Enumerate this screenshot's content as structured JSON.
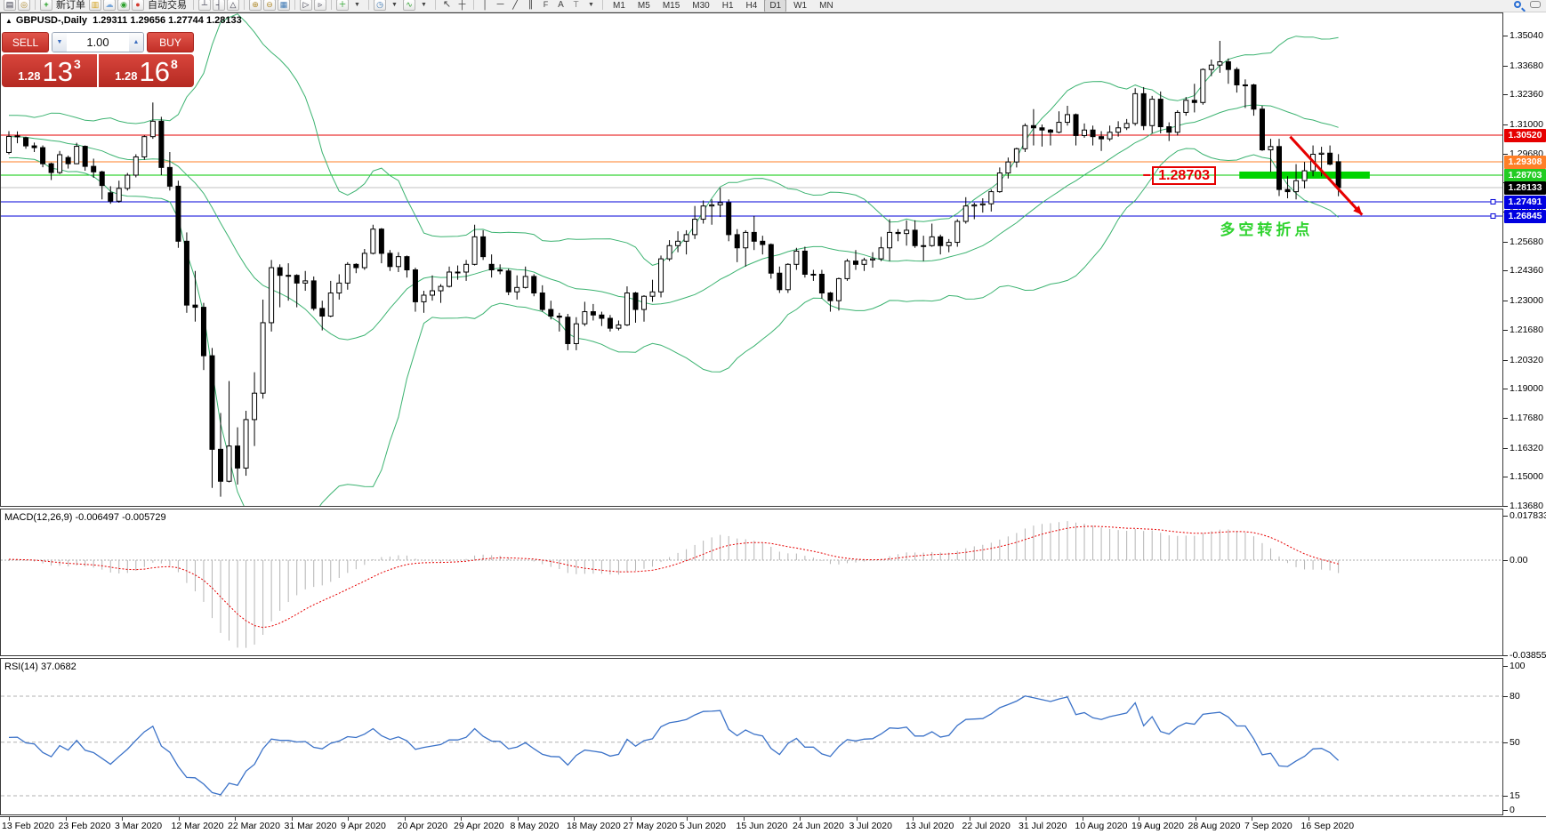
{
  "toolbar": {
    "new_order_label": "新订单",
    "autotrading_label": "自动交易",
    "timeframe_labels": [
      "M1",
      "M5",
      "M15",
      "M30",
      "H1",
      "H4",
      "D1",
      "W1",
      "MN"
    ],
    "active_timeframe": "D1",
    "icon_names_left": [
      "chart-window-icon",
      "zoom-window-icon",
      "new-order-icon",
      "data-window-icon",
      "terminal-icon",
      "signals-icon",
      "autotrading-icon"
    ],
    "icon_names_mid": [
      "auto-scroll-icon",
      "chart-shift-icon",
      "chart-profile-icon",
      "zoom-in-icon",
      "zoom-out-icon",
      "tile-windows-icon",
      "tester-icon",
      "step-icon",
      "add-chart-icon",
      "clock-icon",
      "indicators-icon",
      "cursor-icon",
      "crosshair-icon",
      "vertical-line-icon",
      "horizontal-line-icon",
      "trendline-icon",
      "channel-icon",
      "fibonacci-icon",
      "text-icon",
      "text-label-icon",
      "shapes-icon"
    ],
    "icon_names_right": [
      "search-icon",
      "chat-icon"
    ]
  },
  "trade_widget": {
    "sell_label": "SELL",
    "buy_label": "BUY",
    "volume": "1.00",
    "bid": {
      "small": "1.28",
      "big": "13",
      "sup": "3"
    },
    "ask": {
      "small": "1.28",
      "big": "16",
      "sup": "8"
    }
  },
  "chart": {
    "collapse_marker": "▲",
    "title": "GBPUSD-,Daily",
    "ohlc_text": "1.29311 1.29656 1.27744 1.28133"
  },
  "chart_data": {
    "type": "candlestick",
    "symbol": "GBPUSD-",
    "timeframe": "Daily",
    "last_bar": {
      "open": 1.29311,
      "high": 1.29656,
      "low": 1.27744,
      "close": 1.28133
    },
    "x_axis_labels": [
      "13 Feb 2020",
      "23 Feb 2020",
      "3 Mar 2020",
      "12 Mar 2020",
      "22 Mar 2020",
      "31 Mar 2020",
      "9 Apr 2020",
      "20 Apr 2020",
      "29 Apr 2020",
      "8 May 2020",
      "18 May 2020",
      "27 May 2020",
      "5 Jun 2020",
      "15 Jun 2020",
      "24 Jun 2020",
      "3 Jul 2020",
      "13 Jul 2020",
      "22 Jul 2020",
      "31 Jul 2020",
      "10 Aug 2020",
      "19 Aug 2020",
      "28 Aug 2020",
      "7 Sep 2020",
      "16 Sep 2020"
    ],
    "y_axis_ticks": [
      1.3504,
      1.3368,
      1.3236,
      1.31,
      1.2968,
      1.2836,
      1.2704,
      1.2568,
      1.2436,
      1.23,
      1.2168,
      1.2032,
      1.19,
      1.1768,
      1.1632,
      1.15,
      1.1368
    ],
    "warmup_closes": [
      1.3005,
      1.304,
      1.307,
      1.31,
      1.3005,
      1.2995,
      1.304,
      1.3115,
      1.3095,
      1.311,
      1.306,
      1.302,
      1.309,
      1.3105,
      1.302,
      1.299,
      1.301,
      1.306,
      1.293,
      1.3
    ],
    "candles": [
      [
        1.2973,
        1.307,
        1.2965,
        1.3046
      ],
      [
        1.3046,
        1.3069,
        1.3015,
        1.3048
      ],
      [
        1.304,
        1.3045,
        1.299,
        1.3003
      ],
      [
        1.3003,
        1.3018,
        1.2975,
        1.2995
      ],
      [
        1.2995,
        1.3005,
        1.2906,
        1.2922
      ],
      [
        1.2922,
        1.2927,
        1.2848,
        1.2882
      ],
      [
        1.2882,
        1.298,
        1.2875,
        1.2963
      ],
      [
        1.295,
        1.2959,
        1.29,
        1.2922
      ],
      [
        1.2922,
        1.3017,
        1.292,
        1.3001
      ],
      [
        1.3001,
        1.3005,
        1.289,
        1.291
      ],
      [
        1.291,
        1.2945,
        1.2858,
        1.2885
      ],
      [
        1.2885,
        1.289,
        1.276,
        1.2823
      ],
      [
        1.279,
        1.282,
        1.274,
        1.2752
      ],
      [
        1.2752,
        1.2845,
        1.2745,
        1.281
      ],
      [
        1.281,
        1.288,
        1.28,
        1.287
      ],
      [
        1.287,
        1.2965,
        1.286,
        1.2953
      ],
      [
        1.2953,
        1.305,
        1.294,
        1.3045
      ],
      [
        1.3045,
        1.32,
        1.3035,
        1.3115
      ],
      [
        1.3115,
        1.3135,
        1.287,
        1.2905
      ],
      [
        1.2905,
        1.2975,
        1.28,
        1.282
      ],
      [
        1.282,
        1.2845,
        1.254,
        1.257
      ],
      [
        1.257,
        1.261,
        1.2245,
        1.228
      ],
      [
        1.228,
        1.2435,
        1.2205,
        1.227
      ],
      [
        1.227,
        1.229,
        1.1985,
        1.205
      ],
      [
        1.205,
        1.2085,
        1.145,
        1.1625
      ],
      [
        1.1625,
        1.179,
        1.141,
        1.148
      ],
      [
        1.148,
        1.1935,
        1.1475,
        1.164
      ],
      [
        1.164,
        1.1725,
        1.1465,
        1.154
      ],
      [
        1.154,
        1.18,
        1.1505,
        1.176
      ],
      [
        1.176,
        1.1975,
        1.164,
        1.188
      ],
      [
        1.188,
        1.2305,
        1.1855,
        1.22
      ],
      [
        1.22,
        1.2485,
        1.216,
        1.245
      ],
      [
        1.245,
        1.2465,
        1.227,
        1.2415
      ],
      [
        1.2415,
        1.247,
        1.23,
        1.2415
      ],
      [
        1.2415,
        1.242,
        1.227,
        1.238
      ],
      [
        1.238,
        1.2435,
        1.2345,
        1.239
      ],
      [
        1.239,
        1.241,
        1.2255,
        1.2265
      ],
      [
        1.2265,
        1.23,
        1.2165,
        1.223
      ],
      [
        1.223,
        1.239,
        1.2225,
        1.2335
      ],
      [
        1.2335,
        1.242,
        1.2305,
        1.238
      ],
      [
        1.238,
        1.2475,
        1.235,
        1.2465
      ],
      [
        1.2465,
        1.247,
        1.2425,
        1.245
      ],
      [
        1.245,
        1.2535,
        1.244,
        1.2515
      ],
      [
        1.2515,
        1.2645,
        1.251,
        1.2625
      ],
      [
        1.2625,
        1.263,
        1.247,
        1.2515
      ],
      [
        1.2515,
        1.253,
        1.2435,
        1.2455
      ],
      [
        1.2455,
        1.252,
        1.243,
        1.25
      ],
      [
        1.25,
        1.2505,
        1.2405,
        1.244
      ],
      [
        1.244,
        1.245,
        1.225,
        1.2295
      ],
      [
        1.2295,
        1.2345,
        1.2245,
        1.2325
      ],
      [
        1.2325,
        1.2415,
        1.23,
        1.2345
      ],
      [
        1.2345,
        1.2375,
        1.229,
        1.2365
      ],
      [
        1.2365,
        1.2455,
        1.236,
        1.243
      ],
      [
        1.243,
        1.246,
        1.2395,
        1.243
      ],
      [
        1.243,
        1.2485,
        1.239,
        1.2465
      ],
      [
        1.2465,
        1.2645,
        1.246,
        1.259
      ],
      [
        1.259,
        1.262,
        1.2485,
        1.25
      ],
      [
        1.2465,
        1.251,
        1.2405,
        1.244
      ],
      [
        1.244,
        1.2465,
        1.242,
        1.2435
      ],
      [
        1.2435,
        1.2445,
        1.2325,
        1.234
      ],
      [
        1.234,
        1.2415,
        1.2305,
        1.236
      ],
      [
        1.236,
        1.2455,
        1.2355,
        1.241
      ],
      [
        1.241,
        1.242,
        1.232,
        1.2335
      ],
      [
        1.2335,
        1.237,
        1.225,
        1.226
      ],
      [
        1.226,
        1.23,
        1.2215,
        1.223
      ],
      [
        1.223,
        1.2245,
        1.216,
        1.2225
      ],
      [
        1.2225,
        1.224,
        1.2075,
        1.2105
      ],
      [
        1.2105,
        1.2225,
        1.2075,
        1.2195
      ],
      [
        1.2195,
        1.2295,
        1.2185,
        1.225
      ],
      [
        1.225,
        1.2285,
        1.221,
        1.2235
      ],
      [
        1.2235,
        1.225,
        1.2185,
        1.222
      ],
      [
        1.222,
        1.2235,
        1.216,
        1.2175
      ],
      [
        1.2175,
        1.221,
        1.2165,
        1.219
      ],
      [
        1.219,
        1.2365,
        1.2185,
        1.2335
      ],
      [
        1.2335,
        1.234,
        1.22,
        1.226
      ],
      [
        1.226,
        1.2325,
        1.2205,
        1.232
      ],
      [
        1.232,
        1.2395,
        1.2295,
        1.234
      ],
      [
        1.234,
        1.2505,
        1.2315,
        1.249
      ],
      [
        1.249,
        1.2575,
        1.248,
        1.255
      ],
      [
        1.255,
        1.2615,
        1.252,
        1.257
      ],
      [
        1.257,
        1.262,
        1.251,
        1.26
      ],
      [
        1.26,
        1.273,
        1.258,
        1.267
      ],
      [
        1.267,
        1.2755,
        1.265,
        1.273
      ],
      [
        1.273,
        1.276,
        1.2645,
        1.2735
      ],
      [
        1.2735,
        1.2812,
        1.268,
        1.2745
      ],
      [
        1.2745,
        1.276,
        1.257,
        1.26
      ],
      [
        1.26,
        1.2625,
        1.2475,
        1.254
      ],
      [
        1.254,
        1.262,
        1.2455,
        1.261
      ],
      [
        1.261,
        1.2685,
        1.253,
        1.257
      ],
      [
        1.257,
        1.2595,
        1.251,
        1.2555
      ],
      [
        1.2555,
        1.256,
        1.24,
        1.2425
      ],
      [
        1.2425,
        1.2455,
        1.2335,
        1.235
      ],
      [
        1.235,
        1.247,
        1.2335,
        1.2465
      ],
      [
        1.2465,
        1.254,
        1.244,
        1.2525
      ],
      [
        1.2525,
        1.2545,
        1.2405,
        1.242
      ],
      [
        1.242,
        1.244,
        1.239,
        1.242
      ],
      [
        1.242,
        1.244,
        1.231,
        1.2335
      ],
      [
        1.2335,
        1.234,
        1.225,
        1.23
      ],
      [
        1.23,
        1.2405,
        1.2255,
        1.24
      ],
      [
        1.24,
        1.249,
        1.239,
        1.248
      ],
      [
        1.248,
        1.253,
        1.244,
        1.2465
      ],
      [
        1.2465,
        1.2495,
        1.2435,
        1.2485
      ],
      [
        1.2485,
        1.252,
        1.245,
        1.249
      ],
      [
        1.249,
        1.259,
        1.248,
        1.254
      ],
      [
        1.254,
        1.267,
        1.248,
        1.261
      ],
      [
        1.261,
        1.2625,
        1.257,
        1.2605
      ],
      [
        1.2605,
        1.2665,
        1.255,
        1.262
      ],
      [
        1.262,
        1.2665,
        1.254,
        1.255
      ],
      [
        1.255,
        1.2595,
        1.248,
        1.255
      ],
      [
        1.255,
        1.265,
        1.2545,
        1.259
      ],
      [
        1.259,
        1.26,
        1.251,
        1.255
      ],
      [
        1.255,
        1.258,
        1.252,
        1.2565
      ],
      [
        1.2565,
        1.267,
        1.2545,
        1.266
      ],
      [
        1.266,
        1.277,
        1.265,
        1.273
      ],
      [
        1.273,
        1.2745,
        1.267,
        1.2735
      ],
      [
        1.2735,
        1.2765,
        1.27,
        1.274
      ],
      [
        1.274,
        1.2805,
        1.2705,
        1.2795
      ],
      [
        1.2795,
        1.2905,
        1.279,
        1.288
      ],
      [
        1.288,
        1.295,
        1.2855,
        1.293
      ],
      [
        1.293,
        1.2995,
        1.2905,
        1.299
      ],
      [
        1.299,
        1.3105,
        1.2975,
        1.3095
      ],
      [
        1.3095,
        1.317,
        1.3005,
        1.3085
      ],
      [
        1.3085,
        1.31,
        1.3,
        1.3075
      ],
      [
        1.3075,
        1.308,
        1.3005,
        1.3065
      ],
      [
        1.3065,
        1.316,
        1.306,
        1.311
      ],
      [
        1.311,
        1.3185,
        1.3095,
        1.3145
      ],
      [
        1.3145,
        1.315,
        1.3005,
        1.305
      ],
      [
        1.305,
        1.3105,
        1.304,
        1.3075
      ],
      [
        1.3075,
        1.3095,
        1.3005,
        1.3045
      ],
      [
        1.3045,
        1.307,
        1.298,
        1.3035
      ],
      [
        1.3035,
        1.3095,
        1.3025,
        1.3065
      ],
      [
        1.3065,
        1.3115,
        1.3045,
        1.3085
      ],
      [
        1.3085,
        1.3125,
        1.3075,
        1.3105
      ],
      [
        1.3105,
        1.3265,
        1.3095,
        1.324
      ],
      [
        1.324,
        1.327,
        1.3075,
        1.3095
      ],
      [
        1.3095,
        1.323,
        1.306,
        1.3215
      ],
      [
        1.3215,
        1.325,
        1.306,
        1.309
      ],
      [
        1.309,
        1.311,
        1.3025,
        1.3065
      ],
      [
        1.3065,
        1.3165,
        1.305,
        1.3155
      ],
      [
        1.3155,
        1.3225,
        1.314,
        1.321
      ],
      [
        1.321,
        1.3285,
        1.3155,
        1.32
      ],
      [
        1.32,
        1.3355,
        1.319,
        1.335
      ],
      [
        1.335,
        1.3395,
        1.332,
        1.337
      ],
      [
        1.337,
        1.348,
        1.3335,
        1.3385
      ],
      [
        1.3385,
        1.34,
        1.3285,
        1.335
      ],
      [
        1.335,
        1.336,
        1.3245,
        1.328
      ],
      [
        1.328,
        1.3305,
        1.3175,
        1.328
      ],
      [
        1.328,
        1.3285,
        1.314,
        1.317
      ],
      [
        1.317,
        1.3185,
        1.298,
        1.2985
      ],
      [
        1.2985,
        1.3035,
        1.2885,
        1.3
      ],
      [
        1.3,
        1.3035,
        1.2775,
        1.2805
      ],
      [
        1.2805,
        1.2865,
        1.2765,
        1.2795
      ],
      [
        1.2795,
        1.292,
        1.276,
        1.2845
      ],
      [
        1.2845,
        1.293,
        1.281,
        1.289
      ],
      [
        1.289,
        1.3005,
        1.2865,
        1.2965
      ],
      [
        1.2965,
        1.2999,
        1.2865,
        1.297
      ],
      [
        1.297,
        1.3005,
        1.2915,
        1.292
      ],
      [
        1.29311,
        1.29656,
        1.27744,
        1.28133
      ]
    ],
    "overlays": {
      "bollinger": {
        "period": 20,
        "deviation": 2,
        "color": "#3cb371"
      }
    },
    "levels": [
      {
        "price": 1.3052,
        "line_color": "#e60000",
        "tag_color": "#e60000"
      },
      {
        "price": 1.29308,
        "line_color": "#ff7f27",
        "tag_color": "#ff7f27"
      },
      {
        "price": 1.28703,
        "line_color": "#00c800",
        "tag_color": "#22cc22"
      },
      {
        "price": 1.28133,
        "line_color": "#c0c0c0",
        "tag_color": "#000000",
        "type": "last-price"
      },
      {
        "price": 1.27491,
        "line_color": "#0000d8",
        "tag_color": "#0000e0",
        "handle": true
      },
      {
        "price": 1.26845,
        "line_color": "#0000d8",
        "tag_color": "#0000e0",
        "handle": true
      }
    ],
    "macd": {
      "label": "MACD(12,26,9)",
      "fast": 12,
      "slow": 26,
      "signal_period": 9,
      "value_main_text": "-0.006497",
      "value_signal_text": "-0.005729",
      "scale_ticks": [
        "0.017833",
        "0.00",
        "-0.038559"
      ]
    },
    "rsi": {
      "label": "RSI(14)",
      "period": 14,
      "value_text": "37.0682",
      "scale_ticks": [
        "100",
        "80",
        "50",
        "15",
        "0"
      ],
      "level_lines": [
        80,
        50,
        15
      ]
    },
    "annotations": {
      "price_label_text": "1.28703",
      "price_label_anchor": {
        "bar": 135.0,
        "price": 1.28703
      },
      "turning_point_text": "多空转折点",
      "turning_point_anchor": {
        "bar": 143.0,
        "price": 1.2682
      },
      "highlight_band": {
        "price": 1.28703,
        "bar_start": 145.3,
        "bar_end": 160.7,
        "thickness": 8,
        "color": "#00d400"
      },
      "trend_arrow": {
        "from_bar": 151.3,
        "from_price": 1.3045,
        "to_bar": 159.8,
        "to_price": 1.269,
        "color": "#e60000"
      }
    }
  }
}
